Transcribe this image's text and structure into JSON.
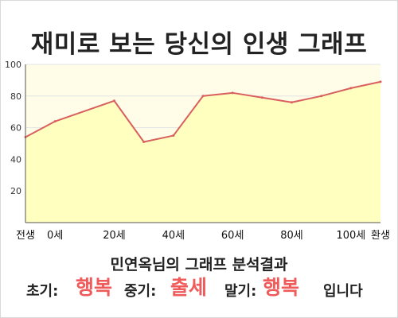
{
  "colors": {
    "background": "#ffffff",
    "plot_background": "#fffde8",
    "area_fill": "#ffffc0",
    "line": "#d9605f",
    "grid": "#e3e3e3",
    "highlight": "#ef5a5a"
  },
  "title": "재미로 보는 당신의 인생 그래프",
  "analysis_title": "민연옥님의 그래프 분석결과",
  "result": {
    "early_label": "초기:",
    "early_value": "행복",
    "mid_label": "중기:",
    "mid_value": "출세",
    "late_label": "말기:",
    "late_value": "행복",
    "suffix": "입니다"
  },
  "chart_data": {
    "type": "area",
    "title": "재미로 보는 당신의 인생 그래프",
    "xlabel": "",
    "ylabel": "",
    "x": [
      -10,
      0,
      20,
      30,
      40,
      50,
      60,
      70,
      80,
      90,
      100,
      110
    ],
    "values": [
      54,
      64,
      77,
      51,
      55,
      80,
      82,
      79,
      76,
      80,
      85,
      89
    ],
    "xlim": [
      -10,
      110
    ],
    "ylim": [
      0,
      100
    ],
    "y_ticks": [
      20,
      40,
      60,
      80,
      100
    ],
    "x_ticks": [
      {
        "value": -10,
        "label": "전생"
      },
      {
        "value": 0,
        "label": "0세"
      },
      {
        "value": 20,
        "label": "20세"
      },
      {
        "value": 40,
        "label": "40세"
      },
      {
        "value": 60,
        "label": "60세"
      },
      {
        "value": 80,
        "label": "80세"
      },
      {
        "value": 100,
        "label": "100세"
      },
      {
        "value": 110,
        "label": "환생"
      }
    ],
    "grid": true,
    "legend": "none"
  }
}
